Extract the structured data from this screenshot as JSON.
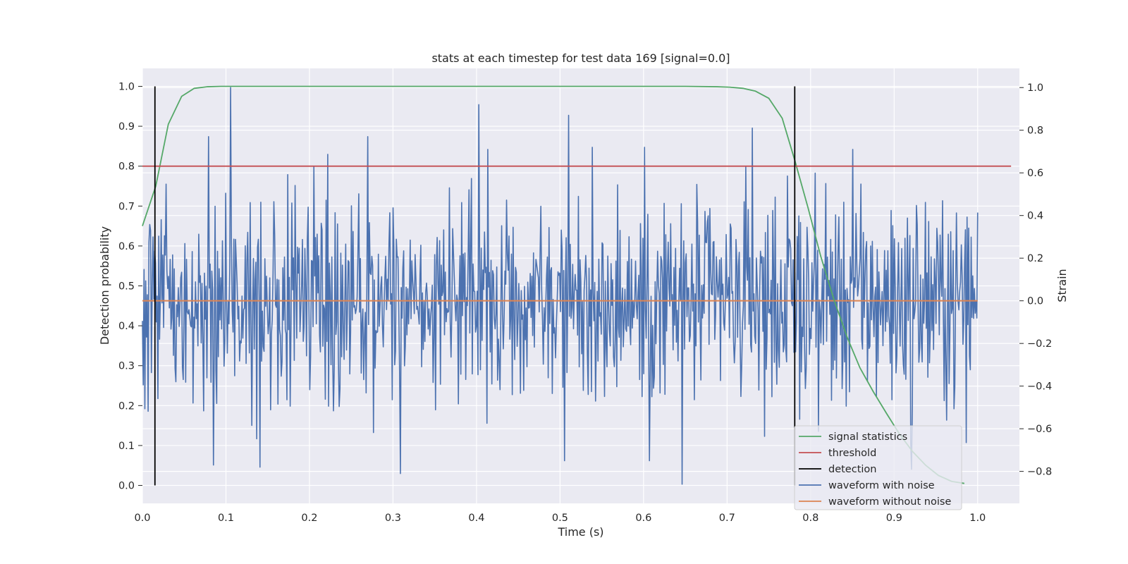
{
  "chart_data": {
    "type": "line",
    "title": "stats at each timestep for test data 169 [signal=0.0]",
    "xlabel": "Time (s)",
    "ylabel": "Detection probability",
    "y2label": "Strain",
    "xlim": [
      0.0,
      1.05
    ],
    "ylim": [
      -0.045,
      1.045
    ],
    "y2lim": [
      -0.95,
      1.09
    ],
    "xticks": [
      "0.0",
      "0.1",
      "0.2",
      "0.3",
      "0.4",
      "0.5",
      "0.6",
      "0.7",
      "0.8",
      "0.9",
      "1.0"
    ],
    "xtick_values": [
      0.0,
      0.1,
      0.2,
      0.3,
      0.4,
      0.5,
      0.6,
      0.7,
      0.8,
      0.9,
      1.0
    ],
    "yticks": [
      "0.0",
      "0.1",
      "0.2",
      "0.3",
      "0.4",
      "0.5",
      "0.6",
      "0.7",
      "0.8",
      "0.9",
      "1.0"
    ],
    "ytick_values": [
      0.0,
      0.1,
      0.2,
      0.3,
      0.4,
      0.5,
      0.6,
      0.7,
      0.8,
      0.9,
      1.0
    ],
    "y2ticks": [
      "−0.8",
      "−0.6",
      "−0.4",
      "−0.2",
      "0.0",
      "0.2",
      "0.4",
      "0.6",
      "0.8",
      "1.0"
    ],
    "y2tick_values": [
      -0.8,
      -0.6,
      -0.4,
      -0.2,
      0.0,
      0.2,
      0.4,
      0.6,
      0.8,
      1.0
    ],
    "grid": true,
    "legend_position": "bottom-right",
    "legend": [
      "signal statistics",
      "threshold",
      "detection",
      "waveform with noise",
      "waveform without noise"
    ],
    "colors": {
      "signal_statistics": "#55a868",
      "threshold": "#c44e52",
      "detection": "#000000",
      "waveform_with_noise": "#4c72b0",
      "waveform_without_noise": "#dd8452",
      "plot_background": "#eaeaf2",
      "grid": "#ffffff"
    },
    "series": [
      {
        "name": "signal statistics",
        "axis": "left",
        "x": [
          0.0,
          0.016,
          0.031,
          0.047,
          0.062,
          0.078,
          0.094,
          0.109,
          0.125,
          0.2,
          0.3,
          0.4,
          0.5,
          0.6,
          0.65,
          0.688,
          0.703,
          0.719,
          0.734,
          0.75,
          0.766,
          0.781,
          0.797,
          0.812,
          0.828,
          0.844,
          0.859,
          0.875,
          0.891,
          0.906,
          0.922,
          0.938,
          0.953,
          0.969,
          0.984
        ],
        "y": [
          0.65,
          0.75,
          0.905,
          0.975,
          0.995,
          0.999,
          1.0,
          1.0,
          1.0,
          1.0,
          1.0,
          1.0,
          1.0,
          1.0,
          1.0,
          0.999,
          0.998,
          0.995,
          0.988,
          0.97,
          0.92,
          0.815,
          0.695,
          0.575,
          0.465,
          0.37,
          0.295,
          0.235,
          0.18,
          0.13,
          0.085,
          0.05,
          0.025,
          0.01,
          0.005
        ]
      },
      {
        "name": "threshold",
        "axis": "left",
        "x": [
          0.0,
          1.04
        ],
        "y": [
          0.8,
          0.8
        ]
      },
      {
        "name": "detection",
        "axis": "left",
        "x": [
          0.015,
          0.781
        ],
        "y_range": [
          0.0,
          1.0
        ]
      },
      {
        "name": "waveform with noise",
        "axis": "right",
        "x_range": [
          0.0,
          1.0
        ],
        "n_points": 1024,
        "y_mean": 0.0,
        "y_min": -0.86,
        "y_max": 1.0,
        "peaks": [
          {
            "x": 0.079,
            "y": 0.77
          },
          {
            "x": 0.106,
            "y": 1.0
          },
          {
            "x": 0.205,
            "y": 0.63
          },
          {
            "x": 0.27,
            "y": 0.77
          },
          {
            "x": 0.403,
            "y": 0.92
          },
          {
            "x": 0.51,
            "y": 0.87
          },
          {
            "x": 0.73,
            "y": 0.81
          },
          {
            "x": 0.818,
            "y": 0.55
          },
          {
            "x": 0.85,
            "y": 0.71
          }
        ],
        "troughs": [
          {
            "x": 0.085,
            "y": -0.77
          },
          {
            "x": 0.141,
            "y": -0.78
          },
          {
            "x": 0.309,
            "y": -0.81
          },
          {
            "x": 0.505,
            "y": -0.75
          },
          {
            "x": 0.607,
            "y": -0.75
          },
          {
            "x": 0.646,
            "y": -0.86
          },
          {
            "x": 0.921,
            "y": -0.79
          }
        ]
      },
      {
        "name": "waveform without noise",
        "axis": "right",
        "x": [
          0.0,
          1.0
        ],
        "y": [
          0.0,
          0.0
        ]
      }
    ]
  }
}
